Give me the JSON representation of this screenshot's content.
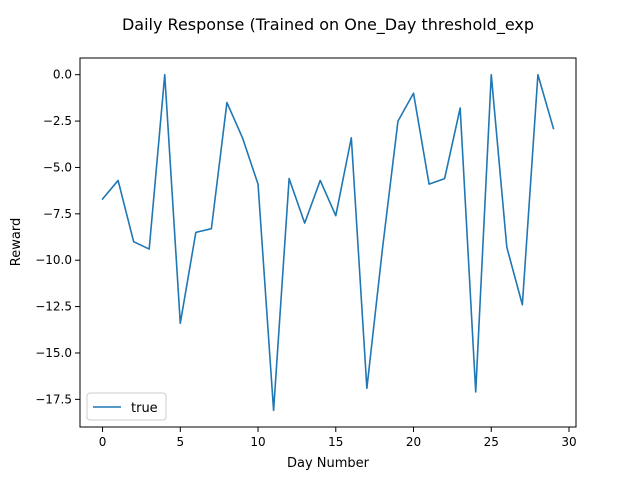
{
  "chart_data": {
    "type": "line",
    "title": "Daily Response (Trained on One_Day threshold_exp",
    "xlabel": "Day Number",
    "ylabel": "Reward",
    "xlim": [
      -1.45,
      30.45
    ],
    "ylim": [
      -18.99,
      0.9
    ],
    "x_ticks": [
      0,
      5,
      10,
      15,
      20,
      25,
      30
    ],
    "y_ticks": [
      0.0,
      -2.5,
      -5.0,
      -7.5,
      -10.0,
      -12.5,
      -15.0,
      -17.5
    ],
    "x_tick_labels": [
      "0",
      "5",
      "10",
      "15",
      "20",
      "25",
      "30"
    ],
    "y_tick_labels": [
      "0.0",
      "−2.5",
      "−5.0",
      "−7.5",
      "−10.0",
      "−12.5",
      "−15.0",
      "−17.5"
    ],
    "grid": false,
    "legend_position": "lower-left",
    "series": [
      {
        "name": "true",
        "color": "#1f77b4",
        "x": [
          0,
          1,
          2,
          3,
          4,
          5,
          6,
          7,
          8,
          9,
          10,
          11,
          12,
          13,
          14,
          15,
          16,
          17,
          18,
          19,
          20,
          21,
          22,
          23,
          24,
          25,
          26,
          27,
          28,
          29
        ],
        "y": [
          -6.7,
          -5.7,
          -9.0,
          -9.4,
          0.0,
          -13.4,
          -8.5,
          -8.3,
          -1.5,
          -3.4,
          -5.9,
          -18.1,
          -5.6,
          -8.0,
          -5.7,
          -7.6,
          -3.4,
          -16.9,
          -9.4,
          -2.5,
          -1.0,
          -5.9,
          -5.6,
          -1.8,
          -17.1,
          0.0,
          -9.3,
          -12.4,
          0.0,
          -2.9
        ]
      }
    ]
  }
}
